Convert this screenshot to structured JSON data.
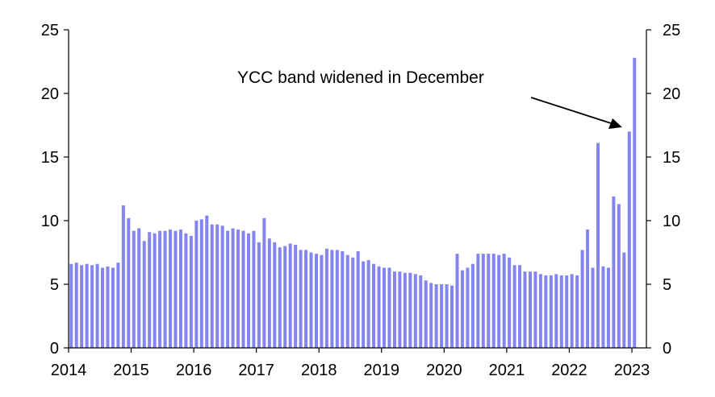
{
  "chart_data": {
    "type": "bar",
    "title": "",
    "xlabel": "",
    "ylabel": "",
    "ylim": [
      0,
      25
    ],
    "yticks": [
      0,
      5,
      10,
      15,
      20,
      25
    ],
    "y_axes": "left and right (mirrored)",
    "grid": false,
    "legend": "none",
    "x_start": "2014-01",
    "x_end": "2023-01",
    "xtick_labels": [
      "2014",
      "2015",
      "2016",
      "2017",
      "2018",
      "2019",
      "2020",
      "2021",
      "2022",
      "2023"
    ],
    "bar_color": "#8585f0",
    "annotation": "YCC band widened in December",
    "values": [
      6.6,
      6.7,
      6.5,
      6.6,
      6.5,
      6.6,
      6.3,
      6.4,
      6.3,
      6.7,
      11.2,
      10.2,
      9.2,
      9.4,
      8.4,
      9.1,
      9.0,
      9.2,
      9.2,
      9.3,
      9.2,
      9.3,
      9.0,
      8.8,
      10.0,
      10.1,
      10.4,
      9.7,
      9.7,
      9.6,
      9.2,
      9.4,
      9.3,
      9.2,
      9.0,
      9.2,
      8.3,
      10.2,
      8.6,
      8.3,
      7.9,
      8.0,
      8.2,
      8.1,
      7.7,
      7.7,
      7.5,
      7.4,
      7.3,
      7.8,
      7.7,
      7.7,
      7.6,
      7.3,
      7.1,
      7.6,
      6.8,
      6.9,
      6.6,
      6.4,
      6.3,
      6.3,
      6.0,
      6.0,
      5.9,
      5.9,
      5.8,
      5.7,
      5.3,
      5.1,
      5.0,
      5.0,
      5.0,
      4.9,
      7.4,
      6.1,
      6.3,
      6.6,
      7.4,
      7.4,
      7.4,
      7.4,
      7.3,
      7.4,
      7.1,
      6.5,
      6.5,
      6.0,
      6.0,
      6.0,
      5.8,
      5.7,
      5.7,
      5.8,
      5.7,
      5.7,
      5.8,
      5.7,
      7.7,
      9.3,
      6.3,
      16.1,
      6.4,
      6.3,
      11.9,
      11.3,
      7.5,
      17.0,
      22.8
    ]
  }
}
